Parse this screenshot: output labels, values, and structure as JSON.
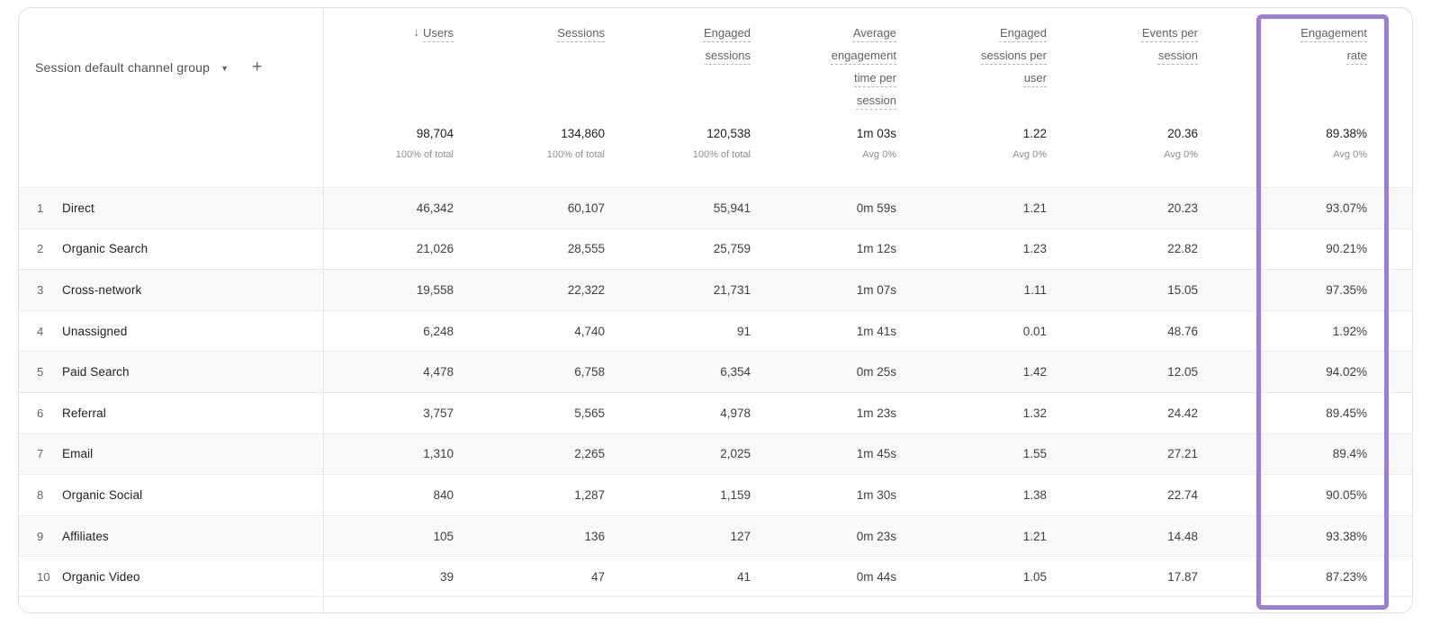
{
  "dimension": {
    "label": "Session default channel group",
    "dropdown_icon": "▼",
    "add_icon": "+"
  },
  "sort": {
    "column": "users",
    "direction": "descending",
    "icon": "↓"
  },
  "columns": [
    {
      "id": "users",
      "label": "Users",
      "total": "98,704",
      "total_sub": "100% of total",
      "sorted": true
    },
    {
      "id": "sessions",
      "label": "Sessions",
      "total": "134,860",
      "total_sub": "100% of total"
    },
    {
      "id": "engaged_sessions",
      "label": "Engaged sessions",
      "total": "120,538",
      "total_sub": "100% of total"
    },
    {
      "id": "avg_engagement_time_per_session",
      "label": "Average engagement time per session",
      "total": "1m 03s",
      "total_sub": "Avg 0%"
    },
    {
      "id": "engaged_sessions_per_user",
      "label": "Engaged sessions per user",
      "total": "1.22",
      "total_sub": "Avg 0%"
    },
    {
      "id": "events_per_session",
      "label": "Events per session",
      "total": "20.36",
      "total_sub": "Avg 0%"
    },
    {
      "id": "engagement_rate",
      "label": "Engagement rate",
      "total": "89.38%",
      "total_sub": "Avg 0%",
      "highlighted": true
    }
  ],
  "rows": [
    {
      "rank": "1",
      "channel": "Direct",
      "users": "46,342",
      "sessions": "60,107",
      "engaged_sessions": "55,941",
      "avg_engagement_time_per_session": "0m 59s",
      "engaged_sessions_per_user": "1.21",
      "events_per_session": "20.23",
      "engagement_rate": "93.07%"
    },
    {
      "rank": "2",
      "channel": "Organic Search",
      "users": "21,026",
      "sessions": "28,555",
      "engaged_sessions": "25,759",
      "avg_engagement_time_per_session": "1m 12s",
      "engaged_sessions_per_user": "1.23",
      "events_per_session": "22.82",
      "engagement_rate": "90.21%"
    },
    {
      "rank": "3",
      "channel": "Cross-network",
      "users": "19,558",
      "sessions": "22,322",
      "engaged_sessions": "21,731",
      "avg_engagement_time_per_session": "1m 07s",
      "engaged_sessions_per_user": "1.11",
      "events_per_session": "15.05",
      "engagement_rate": "97.35%"
    },
    {
      "rank": "4",
      "channel": "Unassigned",
      "users": "6,248",
      "sessions": "4,740",
      "engaged_sessions": "91",
      "avg_engagement_time_per_session": "1m 41s",
      "engaged_sessions_per_user": "0.01",
      "events_per_session": "48.76",
      "engagement_rate": "1.92%"
    },
    {
      "rank": "5",
      "channel": "Paid Search",
      "users": "4,478",
      "sessions": "6,758",
      "engaged_sessions": "6,354",
      "avg_engagement_time_per_session": "0m 25s",
      "engaged_sessions_per_user": "1.42",
      "events_per_session": "12.05",
      "engagement_rate": "94.02%"
    },
    {
      "rank": "6",
      "channel": "Referral",
      "users": "3,757",
      "sessions": "5,565",
      "engaged_sessions": "4,978",
      "avg_engagement_time_per_session": "1m 23s",
      "engaged_sessions_per_user": "1.32",
      "events_per_session": "24.42",
      "engagement_rate": "89.45%"
    },
    {
      "rank": "7",
      "channel": "Email",
      "users": "1,310",
      "sessions": "2,265",
      "engaged_sessions": "2,025",
      "avg_engagement_time_per_session": "1m 45s",
      "engaged_sessions_per_user": "1.55",
      "events_per_session": "27.21",
      "engagement_rate": "89.4%"
    },
    {
      "rank": "8",
      "channel": "Organic Social",
      "users": "840",
      "sessions": "1,287",
      "engaged_sessions": "1,159",
      "avg_engagement_time_per_session": "1m 30s",
      "engaged_sessions_per_user": "1.38",
      "events_per_session": "22.74",
      "engagement_rate": "90.05%"
    },
    {
      "rank": "9",
      "channel": "Affiliates",
      "users": "105",
      "sessions": "136",
      "engaged_sessions": "127",
      "avg_engagement_time_per_session": "0m 23s",
      "engaged_sessions_per_user": "1.21",
      "events_per_session": "14.48",
      "engagement_rate": "93.38%"
    },
    {
      "rank": "10",
      "channel": "Organic Video",
      "users": "39",
      "sessions": "47",
      "engaged_sessions": "41",
      "avg_engagement_time_per_session": "0m 44s",
      "engaged_sessions_per_user": "1.05",
      "events_per_session": "17.87",
      "engagement_rate": "87.23%"
    }
  ],
  "highlight": {
    "column_id": "engagement_rate",
    "border_color": "#9b7fd4"
  }
}
